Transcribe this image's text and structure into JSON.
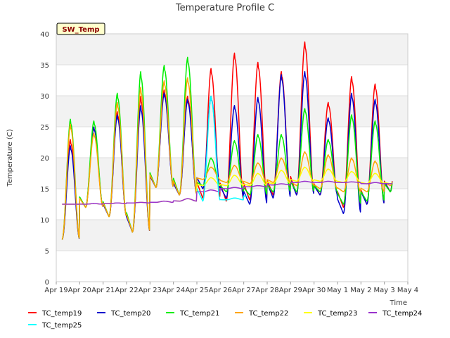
{
  "chart_data": {
    "type": "line",
    "title": "Temperature Profile C",
    "xlabel": "Time",
    "ylabel": "Temperature (C)",
    "badge": "SW_Temp",
    "ylim": [
      0,
      40
    ],
    "yticks": [
      0,
      5,
      10,
      15,
      20,
      25,
      30,
      35,
      40
    ],
    "xlim": [
      "2024-04-19",
      "2024-05-04"
    ],
    "xticks": [
      "Apr 19",
      "Apr 20",
      "Apr 21",
      "Apr 22",
      "Apr 23",
      "Apr 24",
      "Apr 25",
      "Apr 26",
      "Apr 27",
      "Apr 28",
      "Apr 29",
      "Apr 30",
      "May 1",
      "May 2",
      "May 3",
      "May 4"
    ],
    "grid": true,
    "legend_position": "bottom",
    "series": [
      {
        "name": "TC_temp19",
        "color": "#ff0000",
        "start": "2024-04-19T06:00",
        "end": "2024-05-03T08:00",
        "daily_min": [
          6.8,
          12.0,
          10.5,
          8.0,
          15.2,
          14.0,
          13.5,
          13.0,
          13.2,
          14.0,
          14.0,
          14.0,
          12.0,
          12.5,
          14.5
        ],
        "daily_max": [
          23.0,
          25.0,
          27.5,
          30.0,
          31.0,
          30.0,
          34.5,
          37.0,
          35.5,
          34.0,
          38.8,
          29.0,
          33.2,
          32.0,
          28.8
        ]
      },
      {
        "name": "TC_temp20",
        "color": "#0000cc",
        "start": "2024-04-19T06:00",
        "end": "2024-05-03T08:00",
        "daily_min": [
          6.8,
          12.0,
          10.5,
          8.0,
          15.2,
          14.0,
          15.0,
          13.5,
          12.5,
          13.5,
          14.0,
          14.0,
          11.0,
          12.5,
          14.5
        ],
        "daily_max": [
          22.0,
          25.0,
          27.0,
          28.5,
          30.5,
          29.5,
          30.0,
          28.5,
          29.8,
          33.5,
          34.0,
          26.5,
          30.5,
          29.5,
          27.8
        ]
      },
      {
        "name": "TC_temp21",
        "color": "#00ee00",
        "start": "2024-04-19T06:00",
        "end": "2024-05-03T08:00",
        "daily_min": [
          6.8,
          12.0,
          10.5,
          8.0,
          15.2,
          14.0,
          15.5,
          14.5,
          14.0,
          14.5,
          14.5,
          14.5,
          12.5,
          13.0,
          14.5
        ],
        "daily_max": [
          26.3,
          26.0,
          30.5,
          34.0,
          35.0,
          36.3,
          20.0,
          22.8,
          23.8,
          23.8,
          28.0,
          23.0,
          27.0,
          26.0,
          25.5
        ]
      },
      {
        "name": "TC_temp22",
        "color": "#ffa500",
        "start": "2024-04-19T06:00",
        "end": "2024-05-03T08:00",
        "daily_min": [
          6.8,
          12.0,
          10.5,
          8.0,
          15.2,
          14.0,
          16.5,
          16.0,
          15.8,
          16.0,
          15.5,
          15.0,
          14.5,
          14.5,
          15.5
        ],
        "daily_max": [
          25.5,
          24.0,
          29.0,
          31.5,
          32.5,
          33.0,
          18.5,
          18.8,
          19.2,
          20.0,
          21.0,
          20.5,
          20.0,
          19.5,
          19.5
        ]
      },
      {
        "name": "TC_temp23",
        "color": "#ffff00",
        "start": "2024-04-19T06:00",
        "end": "2024-05-03T08:00",
        "daily_min": [
          12.5,
          12.5,
          12.6,
          12.7,
          12.8,
          13.0,
          15.5,
          15.5,
          15.5,
          15.8,
          16.2,
          16.2,
          16.0,
          15.8,
          15.8
        ],
        "daily_max": [
          12.5,
          12.6,
          12.7,
          12.8,
          13.0,
          13.4,
          16.8,
          17.2,
          17.5,
          18.0,
          18.5,
          18.2,
          17.8,
          17.5,
          17.5
        ]
      },
      {
        "name": "TC_temp24",
        "color": "#9932cc",
        "start": "2024-04-19T06:00",
        "end": "2024-05-03T08:00",
        "daily_min": [
          12.5,
          12.5,
          12.6,
          12.7,
          12.8,
          13.0,
          14.5,
          15.0,
          15.3,
          15.6,
          16.0,
          16.0,
          16.0,
          15.8,
          15.8
        ],
        "daily_max": [
          12.5,
          12.6,
          12.7,
          12.8,
          13.0,
          13.4,
          14.8,
          15.2,
          15.5,
          15.8,
          16.2,
          16.2,
          16.1,
          16.0,
          16.0
        ]
      },
      {
        "name": "TC_temp25",
        "color": "#00ffff",
        "start": "2024-04-25T00:00",
        "end": "2024-04-27T04:00",
        "daily_min": [
          13.0,
          13.2,
          13.8
        ],
        "daily_max": [
          30.0,
          13.5,
          14.0
        ]
      }
    ]
  }
}
